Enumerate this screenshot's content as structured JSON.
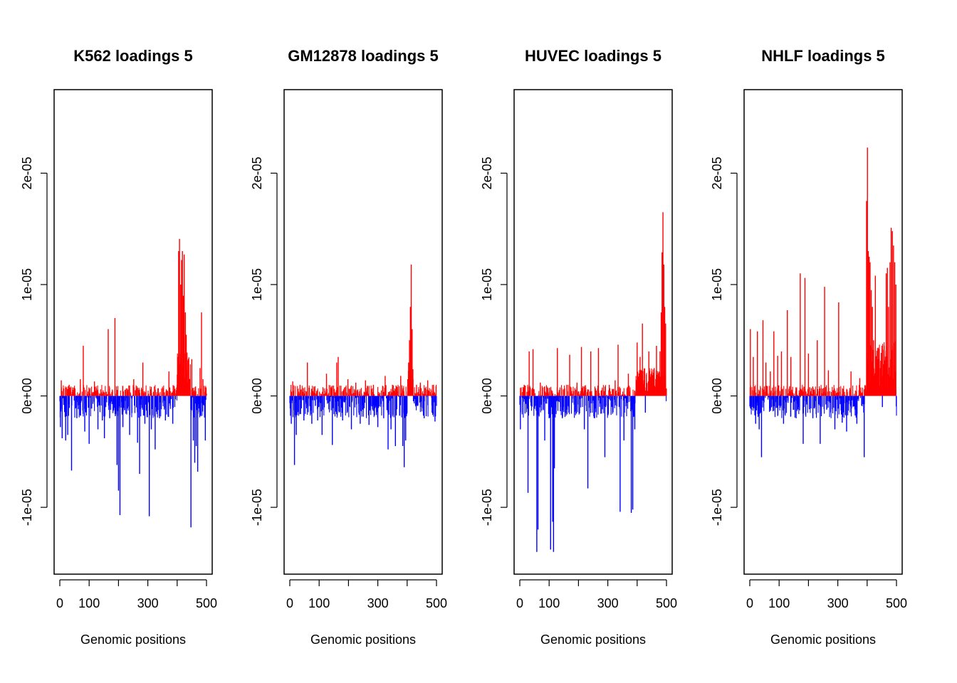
{
  "chart_data": [
    {
      "type": "bar",
      "title": "K562 loadings 5",
      "xlabel": "Genomic positions",
      "ylabel": "",
      "xlim": [
        0,
        500
      ],
      "ylim": [
        -1.6e-05,
        2.75e-05
      ],
      "xticks": [
        0,
        100,
        300,
        500
      ],
      "xtick_labels": [
        "0",
        "100",
        "300",
        "500"
      ],
      "yticks": [
        -1e-05,
        0,
        1e-05,
        2e-05
      ],
      "ytick_labels": [
        "-1e-05",
        "0e+00",
        "1e-05",
        "2e-05"
      ],
      "colors": {
        "positive": "#ff0000",
        "negative": "#0000ff"
      },
      "peaks": [
        {
          "x": 2,
          "y": -2.8e-06
        },
        {
          "x": 5,
          "y": 1.4e-06
        },
        {
          "x": 8,
          "y": -3.8e-06
        },
        {
          "x": 20,
          "y": -4e-06
        },
        {
          "x": 27,
          "y": -3.5e-06
        },
        {
          "x": 32,
          "y": 1e-06
        },
        {
          "x": 40,
          "y": -6.7e-06
        },
        {
          "x": 58,
          "y": -2e-06
        },
        {
          "x": 70,
          "y": 1.5e-06
        },
        {
          "x": 80,
          "y": 4.5e-06
        },
        {
          "x": 85,
          "y": -3.2e-06
        },
        {
          "x": 100,
          "y": -4.3e-06
        },
        {
          "x": 118,
          "y": 1.3e-06
        },
        {
          "x": 130,
          "y": -3e-06
        },
        {
          "x": 145,
          "y": -2.2e-06
        },
        {
          "x": 152,
          "y": -3.8e-06
        },
        {
          "x": 165,
          "y": 6e-06
        },
        {
          "x": 170,
          "y": -2e-06
        },
        {
          "x": 188,
          "y": 7e-06
        },
        {
          "x": 195,
          "y": -6.2e-06
        },
        {
          "x": 200,
          "y": -8.5e-06
        },
        {
          "x": 205,
          "y": -1.07e-05
        },
        {
          "x": 215,
          "y": -2.8e-06
        },
        {
          "x": 238,
          "y": -3.5e-06
        },
        {
          "x": 252,
          "y": 1.5e-06
        },
        {
          "x": 265,
          "y": -4.2e-06
        },
        {
          "x": 272,
          "y": -7e-06
        },
        {
          "x": 283,
          "y": 3e-06
        },
        {
          "x": 290,
          "y": -2.5e-06
        },
        {
          "x": 305,
          "y": -1.08e-05
        },
        {
          "x": 312,
          "y": -3e-06
        },
        {
          "x": 325,
          "y": -4.8e-06
        },
        {
          "x": 340,
          "y": -2e-06
        },
        {
          "x": 360,
          "y": -2.2e-06
        },
        {
          "x": 372,
          "y": 2.2e-06
        },
        {
          "x": 385,
          "y": -2.5e-06
        },
        {
          "x": 400,
          "y": 1e-06
        },
        {
          "x": 402,
          "y": 3.5e-06
        },
        {
          "x": 405,
          "y": 1.3e-05
        },
        {
          "x": 408,
          "y": 1.41e-05
        },
        {
          "x": 412,
          "y": 1e-05
        },
        {
          "x": 415,
          "y": 1.22e-05
        },
        {
          "x": 418,
          "y": 1.3e-05
        },
        {
          "x": 421,
          "y": 9e-06
        },
        {
          "x": 424,
          "y": 1.27e-05
        },
        {
          "x": 428,
          "y": 7.5e-06
        },
        {
          "x": 431,
          "y": 5.5e-06
        },
        {
          "x": 435,
          "y": 3.2e-06
        },
        {
          "x": 440,
          "y": 1.5e-06
        },
        {
          "x": 447,
          "y": -1.18e-05
        },
        {
          "x": 450,
          "y": 3.3e-06
        },
        {
          "x": 455,
          "y": -4e-06
        },
        {
          "x": 460,
          "y": -6e-06
        },
        {
          "x": 465,
          "y": -4.5e-06
        },
        {
          "x": 470,
          "y": -6.8e-06
        },
        {
          "x": 478,
          "y": 2.5e-06
        },
        {
          "x": 483,
          "y": 7.5e-06
        },
        {
          "x": 488,
          "y": 1.5e-06
        },
        {
          "x": 496,
          "y": -4e-06
        }
      ],
      "dense_positive": {
        "from": 400,
        "to": 445,
        "max": 4e-06
      }
    },
    {
      "type": "bar",
      "title": "GM12878 loadings 5",
      "xlabel": "Genomic positions",
      "ylabel": "",
      "xlim": [
        0,
        500
      ],
      "ylim": [
        -1.6e-05,
        2.75e-05
      ],
      "xticks": [
        0,
        100,
        300,
        500
      ],
      "xtick_labels": [
        "0",
        "100",
        "300",
        "500"
      ],
      "yticks": [
        -1e-05,
        0,
        1e-05,
        2e-05
      ],
      "ytick_labels": [
        "-1e-05",
        "0e+00",
        "1e-05",
        "2e-05"
      ],
      "colors": {
        "positive": "#ff0000",
        "negative": "#0000ff"
      },
      "peaks": [
        {
          "x": 5,
          "y": -2.5e-06
        },
        {
          "x": 10,
          "y": 1.3e-06
        },
        {
          "x": 16,
          "y": -6.2e-06
        },
        {
          "x": 22,
          "y": -3.5e-06
        },
        {
          "x": 35,
          "y": 1e-06
        },
        {
          "x": 48,
          "y": -2.2e-06
        },
        {
          "x": 60,
          "y": 3e-06
        },
        {
          "x": 75,
          "y": -2.5e-06
        },
        {
          "x": 95,
          "y": -2.2e-06
        },
        {
          "x": 110,
          "y": -3.5e-06
        },
        {
          "x": 125,
          "y": 2e-06
        },
        {
          "x": 145,
          "y": -4.4e-06
        },
        {
          "x": 160,
          "y": 3e-06
        },
        {
          "x": 165,
          "y": 3.5e-06
        },
        {
          "x": 180,
          "y": -2.2e-06
        },
        {
          "x": 198,
          "y": 1.5e-06
        },
        {
          "x": 210,
          "y": -3e-06
        },
        {
          "x": 225,
          "y": 1.2e-06
        },
        {
          "x": 240,
          "y": -2.5e-06
        },
        {
          "x": 258,
          "y": 1.4e-06
        },
        {
          "x": 270,
          "y": -2.6e-06
        },
        {
          "x": 285,
          "y": 1e-06
        },
        {
          "x": 300,
          "y": -2.8e-06
        },
        {
          "x": 320,
          "y": -2e-06
        },
        {
          "x": 325,
          "y": 1.8e-06
        },
        {
          "x": 335,
          "y": -4.8e-06
        },
        {
          "x": 345,
          "y": -3e-06
        },
        {
          "x": 350,
          "y": 1e-06
        },
        {
          "x": 360,
          "y": -4.5e-06
        },
        {
          "x": 378,
          "y": 1.8e-06
        },
        {
          "x": 385,
          "y": -4.5e-06
        },
        {
          "x": 390,
          "y": -6.4e-06
        },
        {
          "x": 395,
          "y": -4e-06
        },
        {
          "x": 402,
          "y": 1.5e-06
        },
        {
          "x": 405,
          "y": 3e-06
        },
        {
          "x": 408,
          "y": 5e-06
        },
        {
          "x": 411,
          "y": 8e-06
        },
        {
          "x": 414,
          "y": 1.18e-05
        },
        {
          "x": 417,
          "y": 6e-06
        },
        {
          "x": 420,
          "y": 1.5e-06
        },
        {
          "x": 432,
          "y": 1e-06
        },
        {
          "x": 445,
          "y": 1.2e-06
        },
        {
          "x": 458,
          "y": -2e-06
        },
        {
          "x": 470,
          "y": 1.4e-06
        },
        {
          "x": 485,
          "y": -1.5e-06
        },
        {
          "x": 490,
          "y": 1e-06
        },
        {
          "x": 495,
          "y": -2.3e-06
        }
      ],
      "dense_positive": {
        "from": 402,
        "to": 420,
        "max": 2.5e-06
      }
    },
    {
      "type": "bar",
      "title": "HUVEC loadings 5",
      "xlabel": "Genomic positions",
      "ylabel": "",
      "xlim": [
        0,
        500
      ],
      "ylim": [
        -1.6e-05,
        2.75e-05
      ],
      "xticks": [
        0,
        100,
        300,
        500
      ],
      "xtick_labels": [
        "0",
        "100",
        "300",
        "500"
      ],
      "yticks": [
        -1e-05,
        0,
        1e-05,
        2e-05
      ],
      "ytick_labels": [
        "-1e-05",
        "0e+00",
        "1e-05",
        "2e-05"
      ],
      "colors": {
        "positive": "#ff0000",
        "negative": "#0000ff"
      },
      "peaks": [
        {
          "x": 2,
          "y": -3e-06
        },
        {
          "x": 15,
          "y": 1e-06
        },
        {
          "x": 28,
          "y": -8.7e-06
        },
        {
          "x": 32,
          "y": 4e-06
        },
        {
          "x": 45,
          "y": 4.2e-06
        },
        {
          "x": 58,
          "y": -1.4e-05
        },
        {
          "x": 62,
          "y": -1.2e-05
        },
        {
          "x": 70,
          "y": 1.2e-06
        },
        {
          "x": 85,
          "y": -4e-06
        },
        {
          "x": 100,
          "y": -2e-06
        },
        {
          "x": 105,
          "y": -1.38e-05
        },
        {
          "x": 112,
          "y": -1.13e-05
        },
        {
          "x": 115,
          "y": -1.4e-05
        },
        {
          "x": 118,
          "y": -6.5e-06
        },
        {
          "x": 128,
          "y": 4.3e-06
        },
        {
          "x": 145,
          "y": -2e-06
        },
        {
          "x": 160,
          "y": 1e-06
        },
        {
          "x": 170,
          "y": 3.7e-06
        },
        {
          "x": 195,
          "y": 1.2e-06
        },
        {
          "x": 210,
          "y": 4.4e-06
        },
        {
          "x": 220,
          "y": -3e-06
        },
        {
          "x": 232,
          "y": -8.3e-06
        },
        {
          "x": 242,
          "y": 4e-06
        },
        {
          "x": 255,
          "y": -2e-06
        },
        {
          "x": 268,
          "y": 4.3e-06
        },
        {
          "x": 290,
          "y": -5.5e-06
        },
        {
          "x": 305,
          "y": 1e-06
        },
        {
          "x": 325,
          "y": 1.4e-06
        },
        {
          "x": 335,
          "y": 4.6e-06
        },
        {
          "x": 342,
          "y": -1.04e-05
        },
        {
          "x": 355,
          "y": -4e-06
        },
        {
          "x": 370,
          "y": 2e-06
        },
        {
          "x": 380,
          "y": -1.05e-05
        },
        {
          "x": 385,
          "y": -1.02e-05
        },
        {
          "x": 392,
          "y": -3e-06
        },
        {
          "x": 400,
          "y": 4.8e-06
        },
        {
          "x": 410,
          "y": 3.5e-06
        },
        {
          "x": 418,
          "y": 6.5e-06
        },
        {
          "x": 428,
          "y": -1.5e-06
        },
        {
          "x": 440,
          "y": 4e-06
        },
        {
          "x": 448,
          "y": 2e-06
        },
        {
          "x": 458,
          "y": 2.5e-06
        },
        {
          "x": 466,
          "y": 4.5e-06
        },
        {
          "x": 472,
          "y": 1.8e-06
        },
        {
          "x": 478,
          "y": 4e-06
        },
        {
          "x": 482,
          "y": 7.5e-06
        },
        {
          "x": 485,
          "y": 1.29e-05
        },
        {
          "x": 488,
          "y": 1.65e-05
        },
        {
          "x": 491,
          "y": 1.18e-05
        },
        {
          "x": 494,
          "y": 8e-06
        },
        {
          "x": 497,
          "y": 6.5e-06
        }
      ],
      "dense_positive": {
        "from": 395,
        "to": 498,
        "max": 2.5e-06
      }
    },
    {
      "type": "bar",
      "title": "NHLF loadings 5",
      "xlabel": "Genomic positions",
      "ylabel": "",
      "xlim": [
        0,
        500
      ],
      "ylim": [
        -1.6e-05,
        2.75e-05
      ],
      "xticks": [
        0,
        100,
        300,
        500
      ],
      "xtick_labels": [
        "0",
        "100",
        "300",
        "500"
      ],
      "yticks": [
        -1e-05,
        0,
        1e-05,
        2e-05
      ],
      "ytick_labels": [
        "-1e-05",
        "0e+00",
        "1e-05",
        "2e-05"
      ],
      "colors": {
        "positive": "#ff0000",
        "negative": "#0000ff"
      },
      "peaks": [
        {
          "x": 2,
          "y": 6e-06
        },
        {
          "x": 5,
          "y": -1e-06
        },
        {
          "x": 12,
          "y": 3.5e-06
        },
        {
          "x": 20,
          "y": -2.5e-06
        },
        {
          "x": 26,
          "y": 5.8e-06
        },
        {
          "x": 32,
          "y": -3e-06
        },
        {
          "x": 40,
          "y": -5.5e-06
        },
        {
          "x": 45,
          "y": 6.8e-06
        },
        {
          "x": 55,
          "y": 3e-06
        },
        {
          "x": 70,
          "y": 2.2e-06
        },
        {
          "x": 82,
          "y": 5.8e-06
        },
        {
          "x": 95,
          "y": 3.6e-06
        },
        {
          "x": 108,
          "y": 4e-06
        },
        {
          "x": 115,
          "y": -2.5e-06
        },
        {
          "x": 128,
          "y": 7.7e-06
        },
        {
          "x": 140,
          "y": 3.5e-06
        },
        {
          "x": 158,
          "y": -2e-06
        },
        {
          "x": 172,
          "y": 1.1e-05
        },
        {
          "x": 182,
          "y": -4.3e-06
        },
        {
          "x": 188,
          "y": 1.06e-05
        },
        {
          "x": 200,
          "y": 3.8e-06
        },
        {
          "x": 215,
          "y": -2e-06
        },
        {
          "x": 230,
          "y": 5e-06
        },
        {
          "x": 240,
          "y": -4.3e-06
        },
        {
          "x": 255,
          "y": 9.8e-06
        },
        {
          "x": 268,
          "y": 2.3e-06
        },
        {
          "x": 290,
          "y": -3e-06
        },
        {
          "x": 303,
          "y": 8.4e-06
        },
        {
          "x": 315,
          "y": -2.4e-06
        },
        {
          "x": 330,
          "y": -3.2e-06
        },
        {
          "x": 345,
          "y": 2.2e-06
        },
        {
          "x": 365,
          "y": -2.5e-06
        },
        {
          "x": 375,
          "y": 1.6e-06
        },
        {
          "x": 390,
          "y": -5.5e-06
        },
        {
          "x": 398,
          "y": 1.75e-05
        },
        {
          "x": 401,
          "y": 2.23e-05
        },
        {
          "x": 404,
          "y": 1.3e-05
        },
        {
          "x": 407,
          "y": 1.25e-05
        },
        {
          "x": 410,
          "y": 1.2e-05
        },
        {
          "x": 414,
          "y": 9.5e-06
        },
        {
          "x": 418,
          "y": 8e-06
        },
        {
          "x": 422,
          "y": 5e-06
        },
        {
          "x": 428,
          "y": 1.08e-05
        },
        {
          "x": 435,
          "y": 3e-06
        },
        {
          "x": 445,
          "y": 2.5e-06
        },
        {
          "x": 452,
          "y": -1e-06
        },
        {
          "x": 458,
          "y": 4.5e-06
        },
        {
          "x": 465,
          "y": 1.1e-05
        },
        {
          "x": 469,
          "y": 1.15e-05
        },
        {
          "x": 473,
          "y": 8e-06
        },
        {
          "x": 478,
          "y": 1.2e-05
        },
        {
          "x": 482,
          "y": 1.51e-05
        },
        {
          "x": 486,
          "y": 1.48e-05
        },
        {
          "x": 490,
          "y": 1.35e-05
        },
        {
          "x": 494,
          "y": 1.2e-05
        },
        {
          "x": 498,
          "y": 1e-05
        }
      ],
      "dense_positive": {
        "from": 398,
        "to": 498,
        "max": 5e-06
      }
    }
  ]
}
